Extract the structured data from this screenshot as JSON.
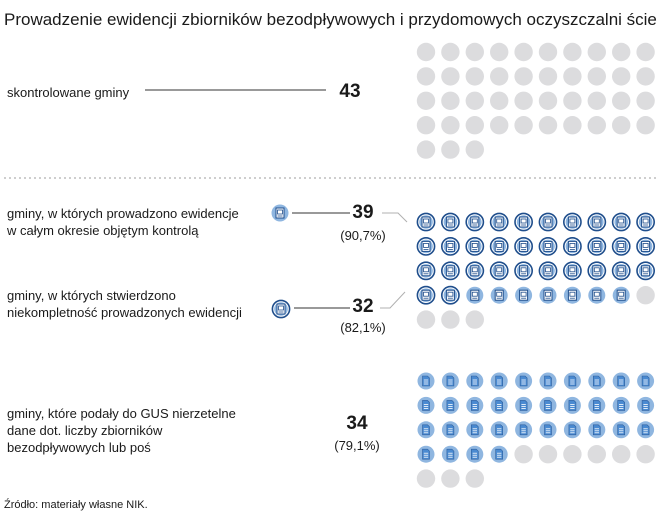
{
  "title": "Prowadzenie ewidencji zbiorników bezodpływowych i przydomowych oczyszczalni ścieków",
  "source": "Źródło: materiały własne NIK.",
  "colors": {
    "empty_dot": "#dcdcde",
    "filled_dot": "#8fb6e0",
    "ring": "#1f4e8c",
    "icon_fill": "#4a8ad1",
    "line": "#333333",
    "separator": "#b0b0b0"
  },
  "chart_data": {
    "type": "unit-pictogram",
    "total": 43,
    "rows": [
      {
        "label_lines": [
          "skontrolowane gminy"
        ],
        "value": 43,
        "percent": "",
        "percent_value": null,
        "icon": "none"
      },
      {
        "label_lines": [
          "gminy, w których prowadzono ewidencje",
          "w całym okresie objętym kontrolą"
        ],
        "value": 39,
        "percent": "(90,7%)",
        "percent_value": 90.7,
        "icon": "register-icon"
      },
      {
        "label_lines": [
          "gminy, w których stwierdzono",
          "niekompletność prowadzonych ewidencji"
        ],
        "value": 32,
        "percent": "(82,1%)",
        "percent_value": 82.1,
        "icon": "register-icon-ringed"
      },
      {
        "label_lines": [
          "gminy, które podały do GUS nierzetelne",
          "dane dot. liczby zbiorników",
          "bezodpływowych lub poś"
        ],
        "value": 34,
        "percent": "(79,1%)",
        "percent_value": 79.1,
        "icon": "document-icon"
      }
    ]
  }
}
